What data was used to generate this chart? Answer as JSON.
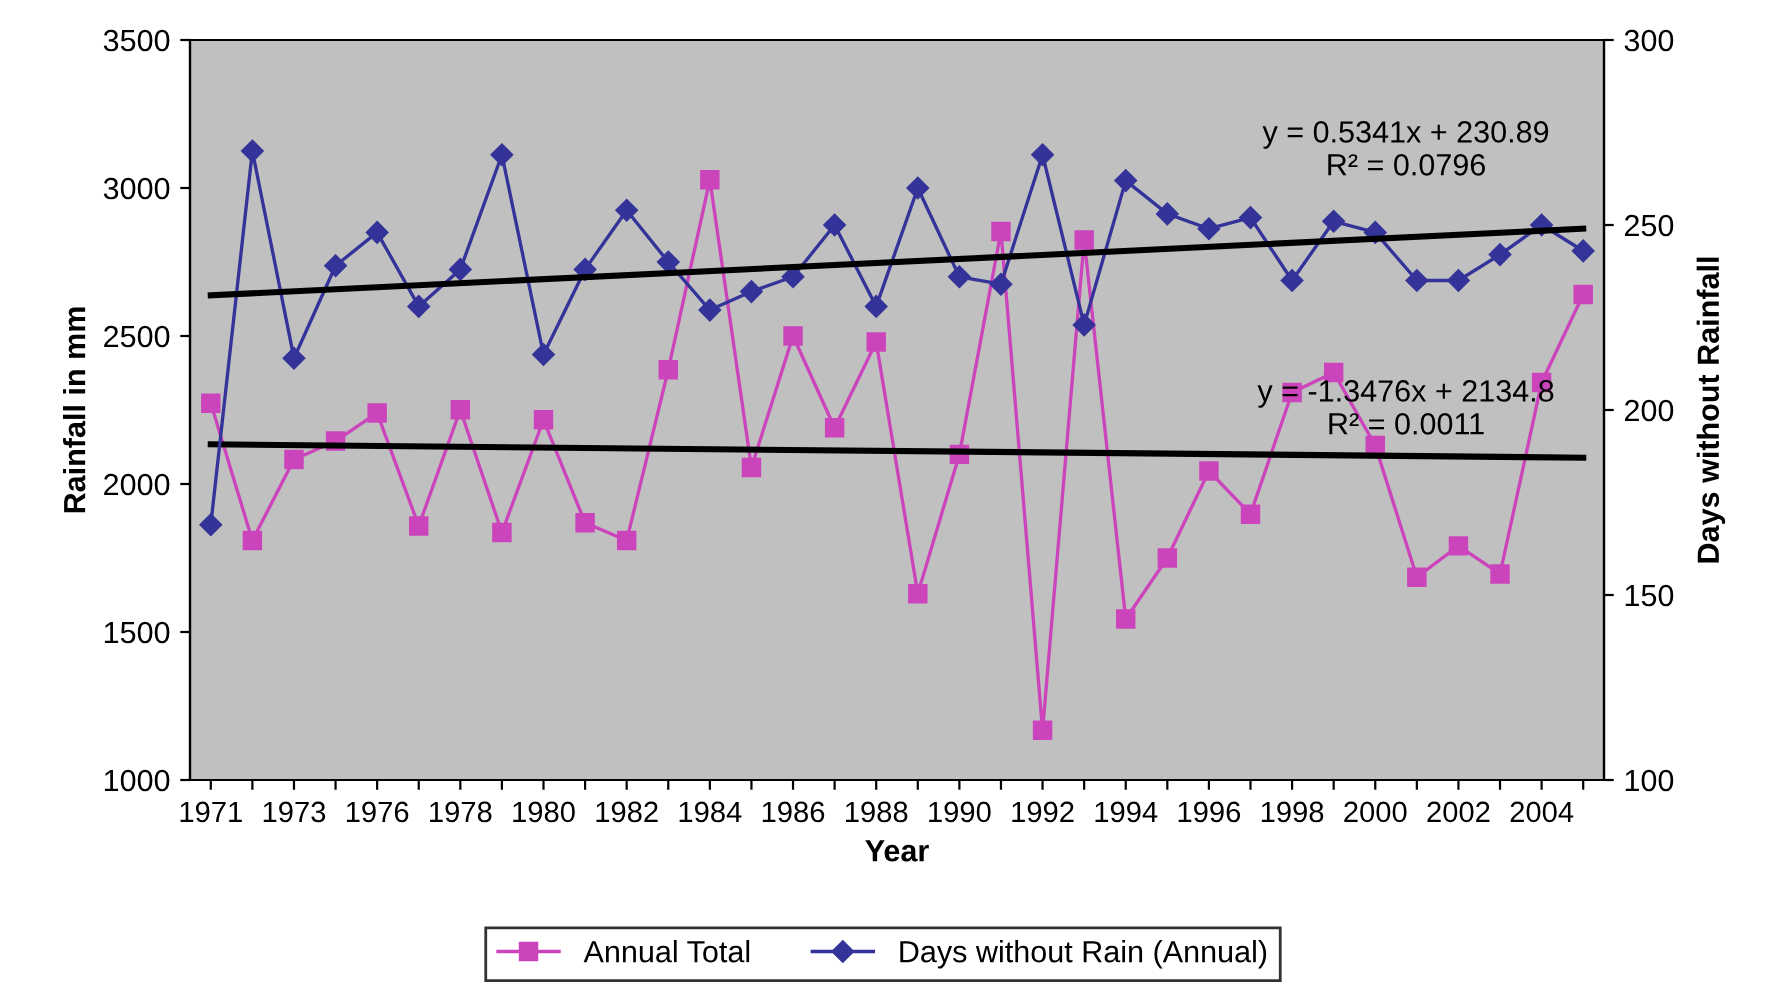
{
  "chart_data": {
    "type": "line",
    "xlabel": "Year",
    "ylabel": "Rainfall in mm",
    "y2label": "Days without Rainfall",
    "categories": [
      "1971",
      null,
      "1973",
      null,
      "1976",
      null,
      "1978",
      null,
      "1980",
      null,
      "1982",
      null,
      "1984",
      null,
      "1986",
      null,
      "1988",
      null,
      "1990",
      null,
      "1992",
      null,
      "1994",
      null,
      "1996",
      null,
      "1998",
      null,
      "2000",
      null,
      "2002",
      null,
      "2004",
      null
    ],
    "series": [
      {
        "name": "Annual Total",
        "color": "#cc44bb",
        "marker": "square",
        "values": [
          2273,
          1809,
          2083,
          2145,
          2240,
          1858,
          2251,
          1836,
          2217,
          1869,
          1809,
          2386,
          3028,
          2056,
          2500,
          2190,
          2480,
          1629,
          2100,
          2853,
          1168,
          2824,
          1544,
          1750,
          2044,
          1898,
          2309,
          2377,
          2130,
          1685,
          1791,
          1696,
          2343,
          2640
        ]
      },
      {
        "name": "Days without Rain (Annual)",
        "color": "#333399",
        "marker": "diamond",
        "axis": "y2",
        "values": [
          169,
          270,
          214,
          239,
          248,
          228,
          238,
          269,
          215,
          238,
          254,
          240,
          227,
          232,
          236,
          250,
          228,
          260,
          236,
          234,
          269,
          223,
          262,
          253,
          249,
          252,
          235,
          251,
          248,
          235,
          235,
          242,
          250,
          243
        ]
      },
      {
        "color": "#000000",
        "marker": "none",
        "values": [
          2134,
          null,
          null,
          null,
          null,
          null,
          null,
          null,
          null,
          null,
          null,
          null,
          null,
          null,
          null,
          null,
          null,
          null,
          null,
          null,
          null,
          null,
          null,
          null,
          null,
          null,
          null,
          null,
          null,
          null,
          null,
          null,
          null,
          2089
        ]
      },
      {
        "color": "#000000",
        "marker": "none",
        "axis": "y2",
        "values": [
          231,
          null,
          null,
          null,
          null,
          null,
          null,
          null,
          null,
          null,
          null,
          null,
          null,
          null,
          null,
          null,
          null,
          null,
          null,
          null,
          null,
          null,
          null,
          null,
          null,
          null,
          null,
          null,
          null,
          null,
          null,
          null,
          null,
          249
        ]
      }
    ],
    "ylim": [
      1000,
      3500
    ],
    "yticks": [
      1000,
      1500,
      2000,
      2500,
      3000,
      3500
    ],
    "y2lim": [
      100,
      300
    ],
    "y2ticks": [
      100,
      150,
      200,
      250,
      300
    ],
    "annotations": [
      "y = 0.5341x + 230.89\nR² = 0.0796",
      "y = -1.3476x + 2134.8\nR² = 0.0011"
    ],
    "grid": false,
    "legend": "bottom"
  }
}
